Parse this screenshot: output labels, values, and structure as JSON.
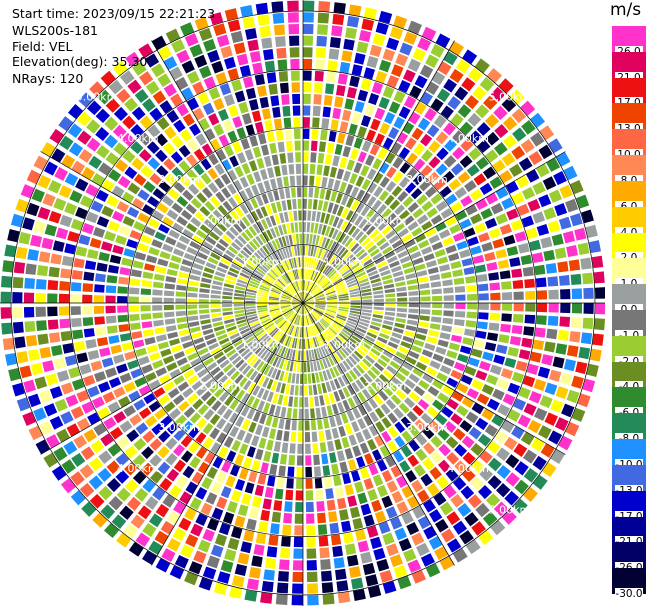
{
  "header": {
    "start_time": "Start time: 2023/09/15 22:21:23",
    "instrument": "WLS200s-181",
    "field": "Field: VEL",
    "elevation": "Elevation(deg): 35.30",
    "nrays": "NRays: 120"
  },
  "colorbar": {
    "unit": "m/s",
    "ticks": [
      "26.0",
      "21.0",
      "17.0",
      "13.0",
      "10.0",
      "8.0",
      "6.0",
      "4.0",
      "2.0",
      "1.0",
      "0.0",
      "-1.0",
      "-2.0",
      "-4.0",
      "-6.0",
      "-8.0",
      "-10.0",
      "-13.0",
      "-17.0",
      "-21.0",
      "-26.0",
      "-30.0"
    ],
    "colors": [
      "#ff33cc",
      "#e0005e",
      "#ee1111",
      "#ee4400",
      "#ff6644",
      "#ff8855",
      "#ffaa00",
      "#ffcc00",
      "#ffff00",
      "#ffff99",
      "#9aa0a0",
      "#777777",
      "#9acd32",
      "#6b8e23",
      "#2e8b2e",
      "#228b57",
      "#1e90ff",
      "#4169e1",
      "#0000cd",
      "#000099",
      "#000066",
      "#000033"
    ]
  },
  "chart_data": {
    "type": "heatmap",
    "title": "",
    "field": "VEL",
    "units": "m/s",
    "elevation_deg": 35.3,
    "nrays": 120,
    "range_rings_km": [
      {
        "ring": 1,
        "labels": [
          "1.00km",
          "1.00km",
          "1.00km",
          "1.00km"
        ]
      },
      {
        "ring": 2,
        "labels": [
          "2.00km",
          "2.00km",
          "2.00km",
          "2.00km"
        ]
      },
      {
        "ring": 3,
        "labels": [
          "3.00km",
          "3.00km",
          "3.00km",
          "3.00km"
        ]
      },
      {
        "ring": 4,
        "labels": [
          "4.00km",
          "4.00km",
          "4.00km",
          "4.00km"
        ]
      },
      {
        "ring": 5,
        "labels": [
          "5.00km",
          "5.00km",
          "5.00km"
        ]
      }
    ],
    "colorscale": {
      "bounds": [
        26.0,
        21.0,
        17.0,
        13.0,
        10.0,
        8.0,
        6.0,
        4.0,
        2.0,
        1.0,
        0.0,
        -1.0,
        -2.0,
        -4.0,
        -6.0,
        -8.0,
        -10.0,
        -13.0,
        -17.0,
        -21.0,
        -26.0,
        -30.0
      ]
    },
    "pattern": {
      "clean_region_max_km": 2.6,
      "dominant_values_inner": [
        -1.0,
        -2.0,
        1.0,
        -3.0
      ],
      "noise_region": "random velocities across full scale beyond ~2.5–3 km"
    }
  }
}
